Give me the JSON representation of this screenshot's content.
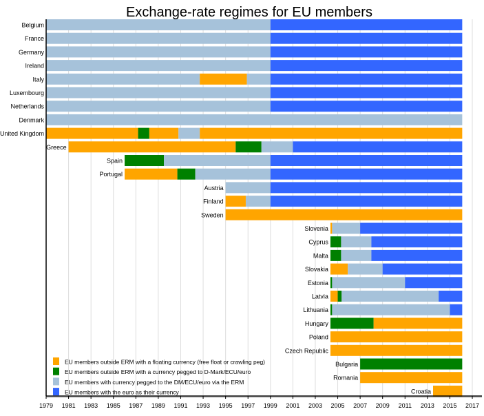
{
  "chart_data": {
    "type": "bar",
    "subtype": "horizontal-timeline",
    "title": "Exchange-rate regimes for EU members",
    "xlabel": "",
    "ylabel": "",
    "xlim": [
      1979,
      2017.5
    ],
    "x_ticks": [
      1979,
      1981,
      1983,
      1985,
      1987,
      1989,
      1991,
      1993,
      1995,
      1997,
      1999,
      2001,
      2003,
      2005,
      2007,
      2009,
      2011,
      2013,
      2015,
      2017
    ],
    "grid": true,
    "legend_position": "bottom-left",
    "colors": {
      "float": "#FFA500",
      "peg": "#008000",
      "erm": "#A6C2DA",
      "euro": "#3366FF"
    },
    "legend": [
      {
        "key": "float",
        "label": "EU members outside ERM with a floating currency (free float or crawling peg)"
      },
      {
        "key": "peg",
        "label": "EU members outside ERM with a currency pegged to D-Mark/ECU/euro"
      },
      {
        "key": "erm",
        "label": "EU members with currency pegged to the DM/ECU/euro via the ERM"
      },
      {
        "key": "euro",
        "label": "EU members with the euro as their currency"
      }
    ],
    "countries": [
      {
        "name": "Belgium",
        "segments": [
          [
            "erm",
            1979,
            1999
          ],
          [
            "euro",
            1999,
            2016.1
          ]
        ]
      },
      {
        "name": "France",
        "segments": [
          [
            "erm",
            1979,
            1999
          ],
          [
            "euro",
            1999,
            2016.1
          ]
        ]
      },
      {
        "name": "Germany",
        "segments": [
          [
            "erm",
            1979,
            1999
          ],
          [
            "euro",
            1999,
            2016.1
          ]
        ]
      },
      {
        "name": "Ireland",
        "segments": [
          [
            "erm",
            1979,
            1999
          ],
          [
            "euro",
            1999,
            2016.1
          ]
        ]
      },
      {
        "name": "Italy",
        "segments": [
          [
            "erm",
            1979,
            1992.7
          ],
          [
            "float",
            1992.7,
            1996.9
          ],
          [
            "erm",
            1996.9,
            1999
          ],
          [
            "euro",
            1999,
            2016.1
          ]
        ]
      },
      {
        "name": "Luxembourg",
        "segments": [
          [
            "erm",
            1979,
            1999
          ],
          [
            "euro",
            1999,
            2016.1
          ]
        ]
      },
      {
        "name": "Netherlands",
        "segments": [
          [
            "erm",
            1979,
            1999
          ],
          [
            "euro",
            1999,
            2016.1
          ]
        ]
      },
      {
        "name": "Denmark",
        "segments": [
          [
            "erm",
            1979,
            2016.1
          ]
        ]
      },
      {
        "name": "United Kingdom",
        "segments": [
          [
            "float",
            1979,
            1987.2
          ],
          [
            "peg",
            1987.2,
            1988.2
          ],
          [
            "float",
            1988.2,
            1990.8
          ],
          [
            "erm",
            1990.8,
            1992.7
          ],
          [
            "float",
            1992.7,
            2016.1
          ]
        ]
      },
      {
        "name": "Greece",
        "segments": [
          [
            "float",
            1981,
            1995.9
          ],
          [
            "peg",
            1995.9,
            1998.2
          ],
          [
            "erm",
            1998.2,
            2001
          ],
          [
            "euro",
            2001,
            2016.1
          ]
        ]
      },
      {
        "name": "Spain",
        "segments": [
          [
            "peg",
            1986,
            1989.5
          ],
          [
            "erm",
            1989.5,
            1999
          ],
          [
            "euro",
            1999,
            2016.1
          ]
        ]
      },
      {
        "name": "Portugal",
        "segments": [
          [
            "float",
            1986,
            1990.7
          ],
          [
            "peg",
            1990.7,
            1992.3
          ],
          [
            "erm",
            1992.3,
            1999
          ],
          [
            "euro",
            1999,
            2016.1
          ]
        ]
      },
      {
        "name": "Austria",
        "segments": [
          [
            "erm",
            1995,
            1999
          ],
          [
            "euro",
            1999,
            2016.1
          ]
        ]
      },
      {
        "name": "Finland",
        "segments": [
          [
            "float",
            1995,
            1996.8
          ],
          [
            "erm",
            1996.8,
            1999
          ],
          [
            "euro",
            1999,
            2016.1
          ]
        ]
      },
      {
        "name": "Sweden",
        "segments": [
          [
            "float",
            1995,
            2016.1
          ]
        ]
      },
      {
        "name": "Slovenia",
        "segments": [
          [
            "float",
            2004.35,
            2004.5
          ],
          [
            "erm",
            2004.5,
            2007
          ],
          [
            "euro",
            2007,
            2016.1
          ]
        ]
      },
      {
        "name": "Cyprus",
        "segments": [
          [
            "peg",
            2004.35,
            2005.3
          ],
          [
            "erm",
            2005.3,
            2008
          ],
          [
            "euro",
            2008,
            2016.1
          ]
        ]
      },
      {
        "name": "Malta",
        "segments": [
          [
            "peg",
            2004.35,
            2005.3
          ],
          [
            "erm",
            2005.3,
            2008
          ],
          [
            "euro",
            2008,
            2016.1
          ]
        ]
      },
      {
        "name": "Slovakia",
        "segments": [
          [
            "float",
            2004.35,
            2005.9
          ],
          [
            "erm",
            2005.9,
            2009
          ],
          [
            "euro",
            2009,
            2016.1
          ]
        ]
      },
      {
        "name": "Estonia",
        "segments": [
          [
            "peg",
            2004.35,
            2004.5
          ],
          [
            "erm",
            2004.5,
            2011
          ],
          [
            "euro",
            2011,
            2016.1
          ]
        ]
      },
      {
        "name": "Latvia",
        "segments": [
          [
            "float",
            2004.35,
            2005
          ],
          [
            "peg",
            2005,
            2005.35
          ],
          [
            "erm",
            2005.35,
            2014
          ],
          [
            "euro",
            2014,
            2016.1
          ]
        ]
      },
      {
        "name": "Lithuania",
        "segments": [
          [
            "peg",
            2004.35,
            2004.5
          ],
          [
            "erm",
            2004.5,
            2015
          ],
          [
            "euro",
            2015,
            2016.1
          ]
        ]
      },
      {
        "name": "Hungary",
        "segments": [
          [
            "peg",
            2004.35,
            2008.2
          ],
          [
            "float",
            2008.2,
            2016.1
          ]
        ]
      },
      {
        "name": "Poland",
        "segments": [
          [
            "float",
            2004.35,
            2016.1
          ]
        ]
      },
      {
        "name": "Czech Republic",
        "segments": [
          [
            "float",
            2004.35,
            2016.1
          ]
        ]
      },
      {
        "name": "Bulgaria",
        "segments": [
          [
            "peg",
            2007,
            2016.1
          ]
        ]
      },
      {
        "name": "Romania",
        "segments": [
          [
            "float",
            2007,
            2016.1
          ]
        ]
      },
      {
        "name": "Croatia",
        "segments": [
          [
            "float",
            2013.5,
            2016.1
          ]
        ]
      }
    ]
  }
}
